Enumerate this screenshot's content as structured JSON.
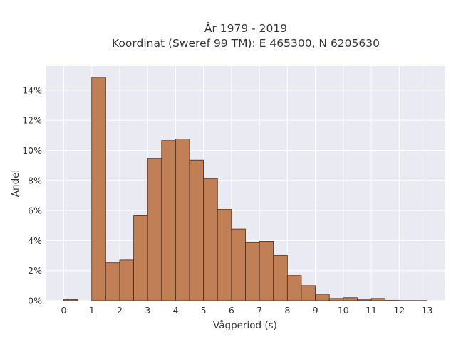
{
  "chart_data": {
    "type": "bar",
    "title_line1": "År 1979 - 2019",
    "title_line2": "Koordinat (Sweref 99 TM): E 465300, N 6205630",
    "xlabel": "Vågperiod (s)",
    "ylabel": "Andel",
    "xlim": [
      -0.65,
      13.65
    ],
    "ylim": [
      0,
      0.156
    ],
    "x_ticks": [
      0,
      1,
      2,
      3,
      4,
      5,
      6,
      7,
      8,
      9,
      10,
      11,
      12,
      13
    ],
    "x_tick_labels": [
      "0",
      "1",
      "2",
      "3",
      "4",
      "5",
      "6",
      "7",
      "8",
      "9",
      "10",
      "11",
      "12",
      "13"
    ],
    "y_ticks": [
      0,
      0.02,
      0.04,
      0.06,
      0.08,
      0.1,
      0.12,
      0.14
    ],
    "y_tick_labels": [
      "0%",
      "2%",
      "4%",
      "6%",
      "8%",
      "10%",
      "12%",
      "14%"
    ],
    "bin_width": 0.5,
    "bins": [
      {
        "x0": 0.0,
        "value": 0.0007
      },
      {
        "x0": 1.0,
        "value": 0.1485
      },
      {
        "x0": 1.5,
        "value": 0.0252
      },
      {
        "x0": 2.0,
        "value": 0.027
      },
      {
        "x0": 2.5,
        "value": 0.0565
      },
      {
        "x0": 3.0,
        "value": 0.0945
      },
      {
        "x0": 3.5,
        "value": 0.1065
      },
      {
        "x0": 4.0,
        "value": 0.1075
      },
      {
        "x0": 4.5,
        "value": 0.0935
      },
      {
        "x0": 5.0,
        "value": 0.081
      },
      {
        "x0": 5.5,
        "value": 0.0607
      },
      {
        "x0": 6.0,
        "value": 0.0477
      },
      {
        "x0": 6.5,
        "value": 0.0385
      },
      {
        "x0": 7.0,
        "value": 0.0395
      },
      {
        "x0": 7.5,
        "value": 0.03
      },
      {
        "x0": 8.0,
        "value": 0.0167
      },
      {
        "x0": 8.5,
        "value": 0.01
      },
      {
        "x0": 9.0,
        "value": 0.0043
      },
      {
        "x0": 9.5,
        "value": 0.0015
      },
      {
        "x0": 10.0,
        "value": 0.002
      },
      {
        "x0": 10.5,
        "value": 0.0006
      },
      {
        "x0": 11.0,
        "value": 0.0015
      },
      {
        "x0": 11.5,
        "value": 0.0002
      },
      {
        "x0": 12.0,
        "value": 0.0001
      },
      {
        "x0": 12.5,
        "value": 0.0001
      }
    ],
    "grid": true,
    "colors": {
      "bar_fill": "#c17f56",
      "bar_edge": "#4a2a17",
      "plot_background": "#eaeaf2",
      "grid": "#ffffff"
    }
  }
}
